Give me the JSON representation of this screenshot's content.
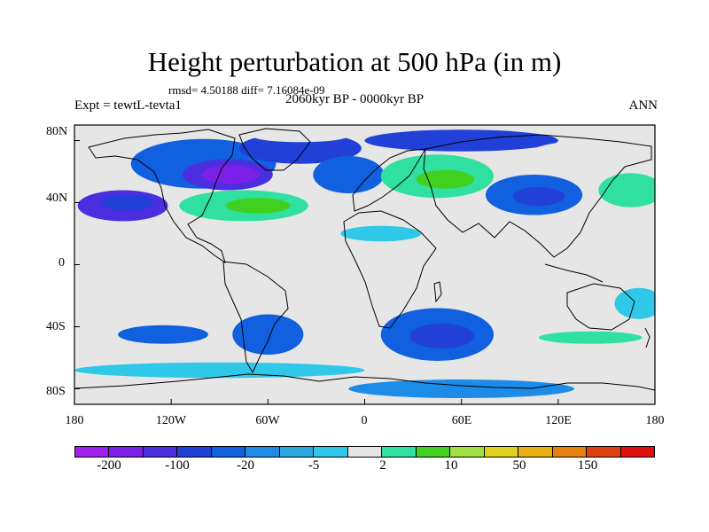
{
  "title": "Height perturbation at 500 hPa (in m)",
  "stats": "rmsd= 4.50188 diff= 7.16084e-09",
  "experiment": "Expt = tewtL-tevta1",
  "period": "2060kyr BP - 0000kyr BP",
  "season": "ANN",
  "map": {
    "lat_labels": [
      "80N",
      "40N",
      "0",
      "40S",
      "80S"
    ],
    "lon_labels": [
      "180",
      "120W",
      "60W",
      "0",
      "60E",
      "120E",
      "180"
    ],
    "background_color": "#e6e6e6",
    "regions": [
      {
        "name": "n-pacific-east",
        "lon": -150,
        "lat": 38,
        "rlon": 28,
        "rlat": 10,
        "level": 2
      },
      {
        "name": "n-pacific-east-core",
        "lon": -147,
        "lat": 40,
        "rlon": 16,
        "rlat": 5,
        "level": 3
      },
      {
        "name": "n-atlantic-band",
        "lon": -75,
        "lat": 38,
        "rlon": 40,
        "rlat": 10,
        "level": 9
      },
      {
        "name": "n-atlantic-core",
        "lon": -66,
        "lat": 38,
        "rlon": 20,
        "rlat": 5,
        "level": 10
      },
      {
        "name": "canada-low",
        "lon": -100,
        "lat": 65,
        "rlon": 45,
        "rlat": 16,
        "level": 4
      },
      {
        "name": "canada-low-core",
        "lon": -85,
        "lat": 58,
        "rlon": 28,
        "rlat": 10,
        "level": 2
      },
      {
        "name": "canada-low-inner",
        "lon": -83,
        "lat": 58,
        "rlon": 18,
        "rlat": 6,
        "level": 1
      },
      {
        "name": "greenland-low",
        "lon": -40,
        "lat": 75,
        "rlon": 38,
        "rlat": 10,
        "level": 3
      },
      {
        "name": "greenland-high",
        "lon": -40,
        "lat": 83,
        "rlon": 30,
        "rlat": 4,
        "level": 8
      },
      {
        "name": "n-atlantic-low",
        "lon": -10,
        "lat": 58,
        "rlon": 22,
        "rlat": 12,
        "level": 4
      },
      {
        "name": "europe-high",
        "lon": 45,
        "lat": 57,
        "rlon": 35,
        "rlat": 14,
        "level": 9
      },
      {
        "name": "europe-high-core",
        "lon": 50,
        "lat": 55,
        "rlon": 18,
        "rlat": 6,
        "level": 10
      },
      {
        "name": "arctic-low",
        "lon": 60,
        "lat": 80,
        "rlon": 60,
        "rlat": 7,
        "level": 3
      },
      {
        "name": "asia-low",
        "lon": 105,
        "lat": 45,
        "rlon": 30,
        "rlat": 13,
        "level": 4
      },
      {
        "name": "asia-low-core",
        "lon": 108,
        "lat": 44,
        "rlon": 16,
        "rlat": 6,
        "level": 3
      },
      {
        "name": "w-pacific-high",
        "lon": 165,
        "lat": 48,
        "rlon": 20,
        "rlat": 11,
        "level": 9
      },
      {
        "name": "e-asia-band",
        "lon": 140,
        "lat": 70,
        "rlon": 40,
        "rlat": 10,
        "level": 8
      },
      {
        "name": "africa-band",
        "lon": 10,
        "lat": 20,
        "rlon": 25,
        "rlat": 5,
        "level": 7
      },
      {
        "name": "s-pacific-high",
        "lon": -135,
        "lat": -28,
        "rlon": 22,
        "rlat": 7,
        "level": 8
      },
      {
        "name": "s-pacific-low",
        "lon": -125,
        "lat": -45,
        "rlon": 28,
        "rlat": 6,
        "level": 4
      },
      {
        "name": "s-america-low",
        "lon": -60,
        "lat": -45,
        "rlon": 22,
        "rlat": 13,
        "level": 4
      },
      {
        "name": "s-atlantic-high",
        "lon": -28,
        "lat": -28,
        "rlon": 10,
        "rlat": 7,
        "level": 8
      },
      {
        "name": "indian-ocean-low",
        "lon": 45,
        "lat": -45,
        "rlon": 35,
        "rlat": 17,
        "level": 4
      },
      {
        "name": "indian-ocean-low-core",
        "lon": 48,
        "lat": -46,
        "rlon": 20,
        "rlat": 8,
        "level": 3
      },
      {
        "name": "s-ocean-high",
        "lon": 140,
        "lat": -48,
        "rlon": 45,
        "rlat": 9,
        "level": 8
      },
      {
        "name": "s-ocean-high-core",
        "lon": 140,
        "lat": -47,
        "rlon": 32,
        "rlat": 4,
        "level": 9
      },
      {
        "name": "w-pacific-tropics",
        "lon": 170,
        "lat": -25,
        "rlon": 15,
        "rlat": 10,
        "level": 7
      },
      {
        "name": "antarctic-band",
        "lon": -90,
        "lat": -68,
        "rlon": 90,
        "rlat": 5,
        "level": 7
      },
      {
        "name": "antarctic-low",
        "lon": 60,
        "lat": -80,
        "rlon": 70,
        "rlat": 6,
        "level": 5
      },
      {
        "name": "ross-high",
        "lon": 165,
        "lat": -82,
        "rlon": 15,
        "rlat": 6,
        "level": 8
      }
    ]
  },
  "colorbar": {
    "colors": [
      "#a020f0",
      "#7a20e8",
      "#4a2ee0",
      "#2040d8",
      "#1060e0",
      "#1c8ce8",
      "#28aae0",
      "#30c8e8",
      "#e6e6e6",
      "#30e0a0",
      "#40d020",
      "#a0e040",
      "#e0d020",
      "#e8b010",
      "#e88010",
      "#e04010",
      "#e01010"
    ],
    "labels": [
      "-200",
      "-100",
      "-20",
      "-5",
      "2",
      "10",
      "50",
      "150"
    ]
  }
}
